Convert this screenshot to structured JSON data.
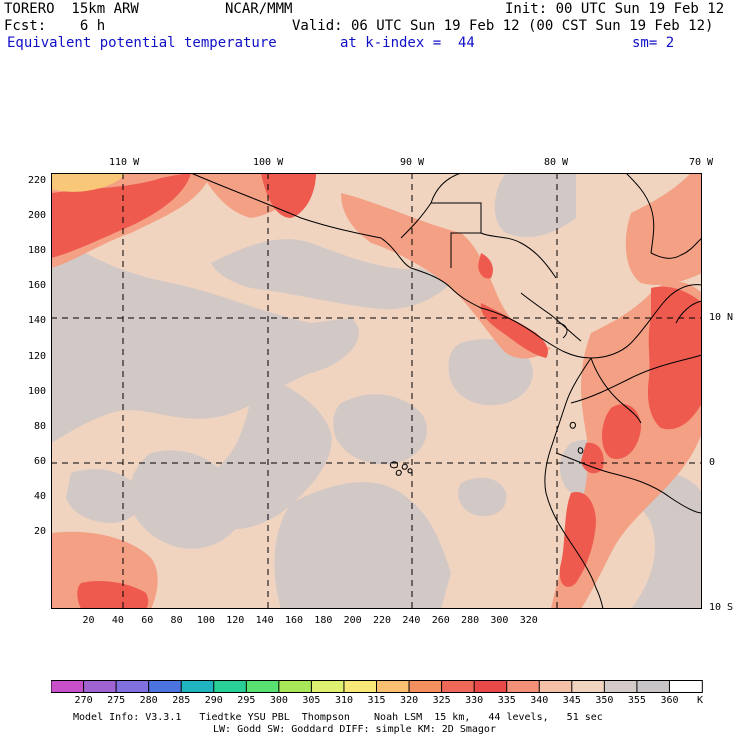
{
  "header": {
    "model": "TORERO  15km ARW",
    "org": "NCAR/MMM",
    "init": "Init: 00 UTC Sun 19 Feb 12",
    "fcst": "Fcst:    6 h",
    "valid": "Valid: 06 UTC Sun 19 Feb 12 (00 CST Sun 19 Feb 12)",
    "field": "Equivalent potential temperature",
    "level": "at k-index =  44",
    "smooth": "sm= 2"
  },
  "map": {
    "top_lon_labels": [
      "110 W",
      "100 W",
      "90 W",
      "80 W",
      "70 W"
    ],
    "right_lat_labels": [
      "10 N",
      "0",
      "10 S"
    ],
    "left_ticks": [
      "220",
      "200",
      "180",
      "160",
      "140",
      "120",
      "100",
      "80",
      "60",
      "40",
      "20"
    ],
    "bottom_ticks": [
      "20",
      "40",
      "60",
      "80",
      "100",
      "120",
      "140",
      "160",
      "180",
      "200",
      "220",
      "240",
      "260",
      "280",
      "300",
      "320"
    ]
  },
  "colorbar": {
    "labels": [
      "270",
      "275",
      "280",
      "285",
      "290",
      "295",
      "300",
      "305",
      "310",
      "315",
      "320",
      "325",
      "330",
      "335",
      "340",
      "345",
      "350",
      "355",
      "360"
    ],
    "unit": "K",
    "colors": [
      "#c850c8",
      "#a064d2",
      "#8070e0",
      "#4c74e0",
      "#20b4c0",
      "#28d098",
      "#58e070",
      "#a8e858",
      "#e0f070",
      "#f8e878",
      "#f8c070",
      "#f49060",
      "#f06858",
      "#e84848",
      "#f49078",
      "#f4c0a8",
      "#f0d4c0",
      "#d4cac8",
      "#c8c4c8",
      "#ffffff"
    ]
  },
  "footer": {
    "line1": "Model Info: V3.3.1   Tiedtke YSU PBL  Thompson    Noah LSM  15 km,   44 levels,   51 sec",
    "line2": "LW: Godd SW: Goddard DIFF: simple KM: 2D Smagor"
  }
}
